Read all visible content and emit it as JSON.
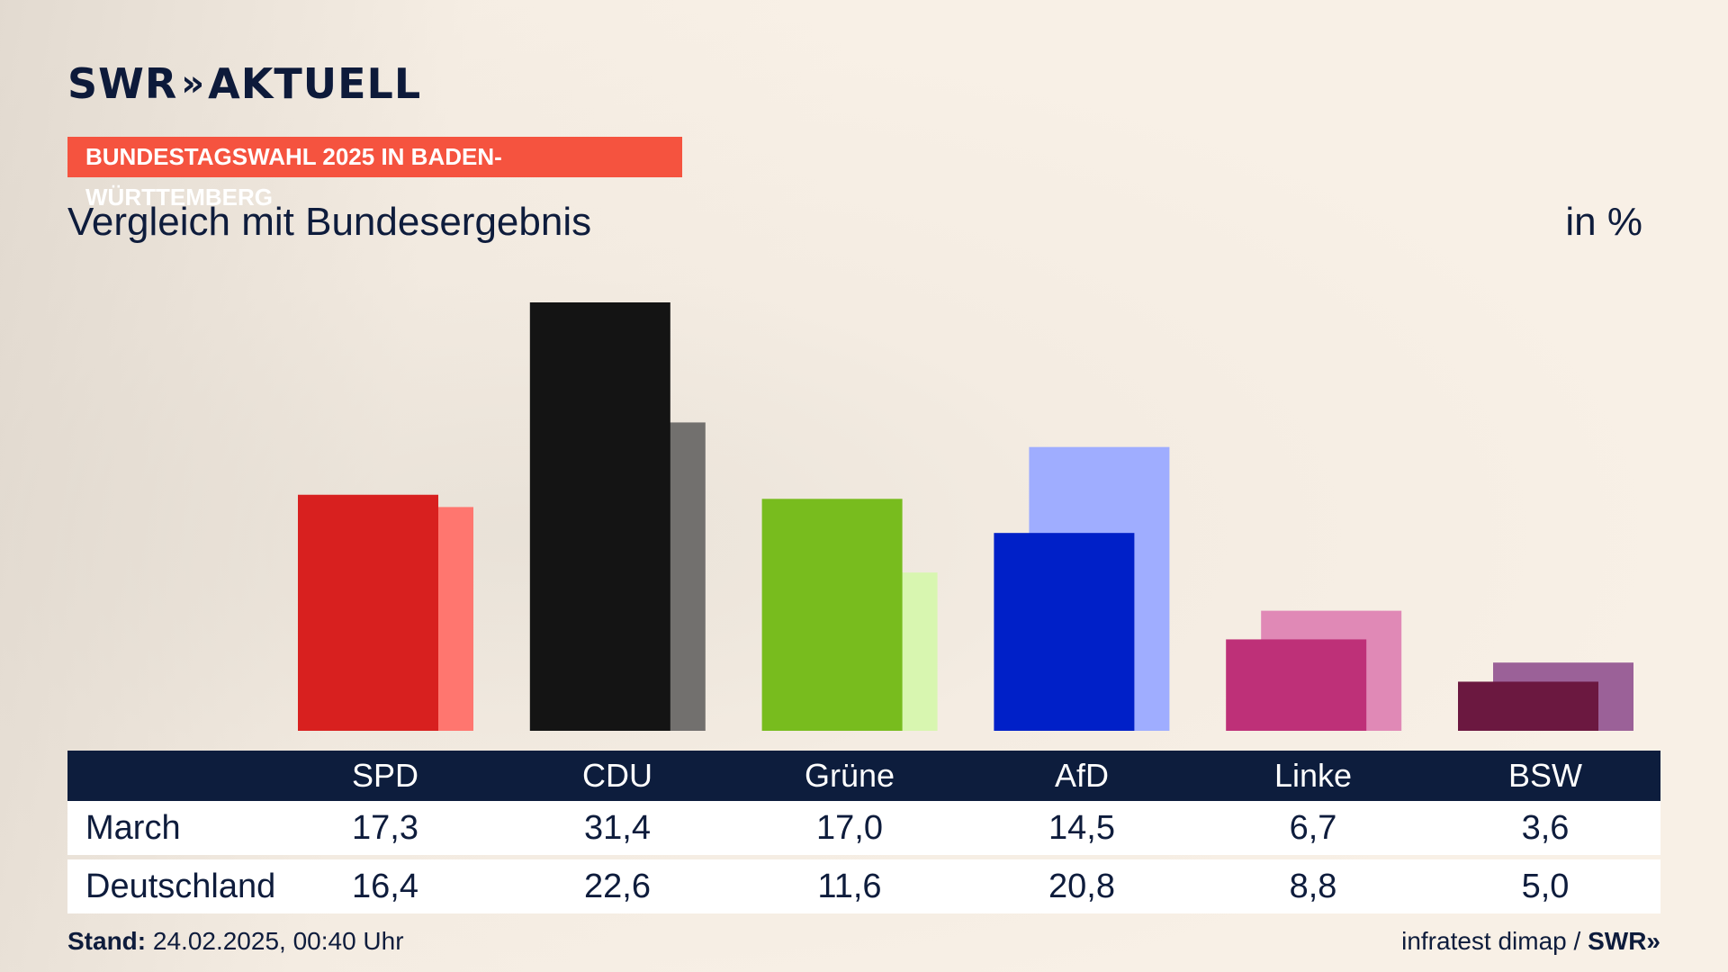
{
  "brand": {
    "logo_text": "SWR",
    "logo_chevrons": "»",
    "logo_suffix": "AKTUELL"
  },
  "header": {
    "tag": "BUNDESTAGSWAHL 2025 IN BADEN-WÜRTTEMBERG",
    "tag_color": "#f5533f",
    "subtitle": "Vergleich mit Bundesergebnis",
    "unit": "in %"
  },
  "chart_data": {
    "type": "bar",
    "categories": [
      "SPD",
      "CDU",
      "Grüne",
      "AfD",
      "Linke",
      "BSW"
    ],
    "series": [
      {
        "name": "March",
        "values": [
          17.3,
          31.4,
          17.0,
          14.5,
          6.7,
          3.6
        ],
        "colors": [
          "#d8201f",
          "#141414",
          "#78bc1e",
          "#0020c8",
          "#be3078",
          "#6b1840"
        ]
      },
      {
        "name": "Deutschland",
        "values": [
          16.4,
          22.6,
          11.6,
          20.8,
          8.8,
          5.0
        ],
        "colors": [
          "#ff766f",
          "#72706e",
          "#d8f6b0",
          "#9fadff",
          "#e089b6",
          "#9b6198"
        ]
      }
    ],
    "ylim": [
      0,
      31.4
    ],
    "grid": false,
    "legend": "table below chart"
  },
  "table": {
    "headers": [
      "SPD",
      "CDU",
      "Grüne",
      "AfD",
      "Linke",
      "BSW"
    ],
    "rows": [
      {
        "label": "March",
        "values": [
          "17,3",
          "31,4",
          "17,0",
          "14,5",
          "6,7",
          "3,6"
        ]
      },
      {
        "label": "Deutschland",
        "values": [
          "16,4",
          "22,6",
          "11,6",
          "20,8",
          "8,8",
          "5,0"
        ]
      }
    ]
  },
  "footer": {
    "stand_label": "Stand:",
    "stand_value": "24.02.2025, 00:40 Uhr",
    "source": "infratest dimap /",
    "source_logo": "SWR",
    "source_chevrons": "»"
  }
}
